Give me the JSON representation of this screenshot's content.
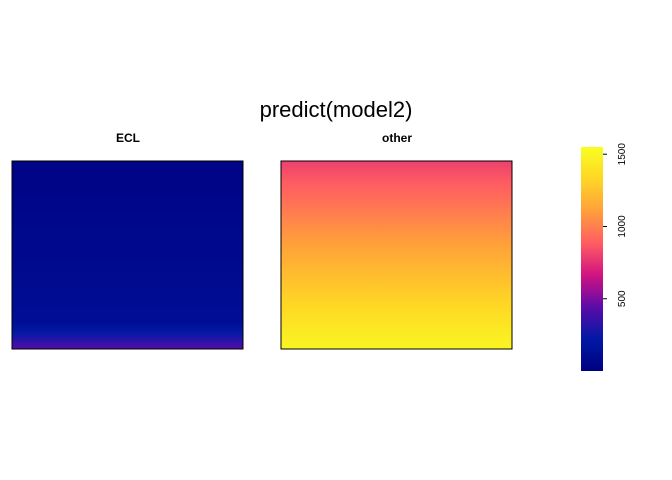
{
  "chart_data": {
    "type": "heatmap",
    "title": "predict(model2)",
    "panels": [
      {
        "label": "ECL",
        "top_value": 30,
        "bottom_value": 420,
        "band": {
          "value": 120,
          "start_fraction": 0.86
        }
      },
      {
        "label": "other",
        "top_value": 800,
        "bottom_value": 1500
      }
    ],
    "colorbar": {
      "min": 0,
      "max": 1550,
      "ticks": [
        "500",
        "1000",
        "1500"
      ],
      "tick_values": [
        500,
        1000,
        1500
      ],
      "palette": [
        "#000080",
        "#0019a6",
        "#5c0ba9",
        "#d21380",
        "#ff5d62",
        "#ffa03a",
        "#ffd625",
        "#f8ff20"
      ],
      "legend_position": "right"
    },
    "grid": false
  }
}
